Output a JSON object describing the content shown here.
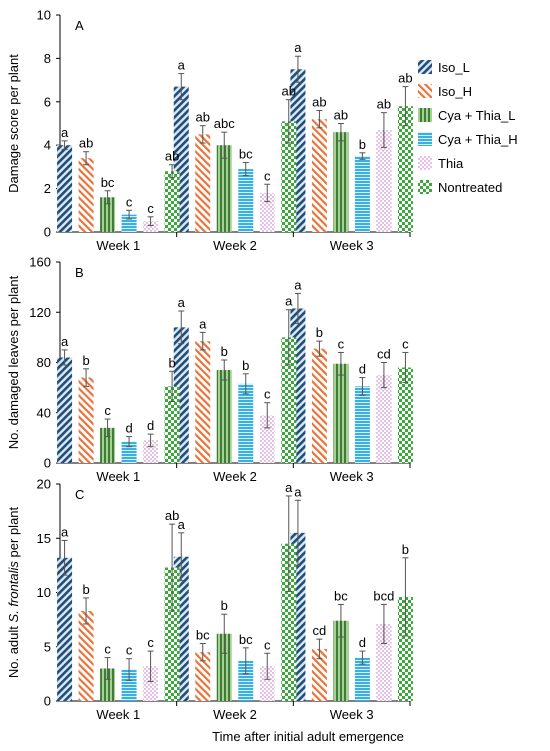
{
  "figure": {
    "xlabel": "Time after initial adult emergence",
    "categories": [
      "Week 1",
      "Week 2",
      "Week 3"
    ]
  },
  "legend": [
    {
      "name": "Iso_L",
      "pattern": "diag-blue"
    },
    {
      "name": "Iso_H",
      "pattern": "diag-orange"
    },
    {
      "name": "Cya + Thia_L",
      "pattern": "vert-green"
    },
    {
      "name": "Cya + Thia_H",
      "pattern": "horiz-blue"
    },
    {
      "name": "Thia",
      "pattern": "dots-pink"
    },
    {
      "name": "Nontreated",
      "pattern": "check-green"
    }
  ],
  "colors": {
    "Iso_L": "#1f4e79",
    "Iso_H": "#e8743b",
    "Cya + Thia_L": "#3b7d3b",
    "Cya + Thia_H": "#3ab0e2",
    "Thia": "#c060c0",
    "Nontreated": "#3aa83a"
  },
  "chart_data": [
    {
      "type": "bar",
      "panel": "A",
      "ylabel": "Damage score per plant",
      "ylim": [
        0,
        10
      ],
      "yticks": [
        0,
        2,
        4,
        6,
        8,
        10
      ],
      "categories": [
        "Week 1",
        "Week 2",
        "Week 3"
      ],
      "series": [
        {
          "name": "Iso_L",
          "values": [
            4.0,
            6.7,
            7.5
          ],
          "errors": [
            0.2,
            0.6,
            0.6
          ],
          "letters": [
            "a",
            "a",
            "a"
          ]
        },
        {
          "name": "Iso_H",
          "values": [
            3.4,
            4.5,
            5.2
          ],
          "errors": [
            0.3,
            0.4,
            0.4
          ],
          "letters": [
            "ab",
            "ab",
            "ab"
          ]
        },
        {
          "name": "Cya + Thia_L",
          "values": [
            1.6,
            4.0,
            4.6
          ],
          "errors": [
            0.3,
            0.6,
            0.4
          ],
          "letters": [
            "bc",
            "abc",
            "ab"
          ]
        },
        {
          "name": "Cya + Thia_H",
          "values": [
            0.8,
            2.9,
            3.5
          ],
          "errors": [
            0.2,
            0.3,
            0.15
          ],
          "letters": [
            "c",
            "bc",
            "b"
          ]
        },
        {
          "name": "Thia",
          "values": [
            0.5,
            1.8,
            4.7
          ],
          "errors": [
            0.2,
            0.4,
            0.8
          ],
          "letters": [
            "c",
            "c",
            "ab"
          ]
        },
        {
          "name": "Nontreated",
          "values": [
            2.8,
            5.1,
            5.8
          ],
          "errors": [
            0.3,
            1.0,
            0.9
          ],
          "letters": [
            "ab",
            "ab",
            "ab"
          ]
        }
      ]
    },
    {
      "type": "bar",
      "panel": "B",
      "ylabel": "No. damaged leaves per plant",
      "ylim": [
        0,
        160
      ],
      "yticks": [
        0,
        40,
        80,
        120,
        160
      ],
      "categories": [
        "Week 1",
        "Week 2",
        "Week 3"
      ],
      "series": [
        {
          "name": "Iso_L",
          "values": [
            84,
            108,
            123
          ],
          "errors": [
            6,
            13,
            12
          ],
          "letters": [
            "a",
            "a",
            "a"
          ]
        },
        {
          "name": "Iso_H",
          "values": [
            68,
            97,
            91
          ],
          "errors": [
            7,
            7,
            6
          ],
          "letters": [
            "b",
            "a",
            "b"
          ]
        },
        {
          "name": "Cya + Thia_L",
          "values": [
            28,
            74,
            79
          ],
          "errors": [
            7,
            8,
            9
          ],
          "letters": [
            "c",
            "b",
            "c"
          ]
        },
        {
          "name": "Cya + Thia_H",
          "values": [
            17,
            63,
            61
          ],
          "errors": [
            4,
            8,
            7
          ],
          "letters": [
            "d",
            "b",
            "d"
          ]
        },
        {
          "name": "Thia",
          "values": [
            18,
            38,
            70
          ],
          "errors": [
            5,
            10,
            10
          ],
          "letters": [
            "d",
            "c",
            "cd"
          ]
        },
        {
          "name": "Nontreated",
          "values": [
            61,
            100,
            76
          ],
          "errors": [
            12,
            22,
            12
          ],
          "letters": [
            "b",
            "a",
            "c"
          ]
        }
      ]
    },
    {
      "type": "bar",
      "panel": "C",
      "ylabel_prefix": "No. adult ",
      "ylabel_italic": "S. frontalis",
      "ylabel_suffix": " per plant",
      "ylim": [
        0,
        20
      ],
      "yticks": [
        0,
        5,
        10,
        15,
        20
      ],
      "categories": [
        "Week 1",
        "Week 2",
        "Week 3"
      ],
      "series": [
        {
          "name": "Iso_L",
          "values": [
            13.2,
            13.3,
            15.5
          ],
          "errors": [
            1.6,
            2.2,
            3.0
          ],
          "letters": [
            "a",
            "a",
            "a"
          ]
        },
        {
          "name": "Iso_H",
          "values": [
            8.3,
            4.5,
            4.8
          ],
          "errors": [
            1.2,
            0.8,
            0.9
          ],
          "letters": [
            "b",
            "bc",
            "cd"
          ]
        },
        {
          "name": "Cya + Thia_L",
          "values": [
            3.0,
            6.2,
            7.4
          ],
          "errors": [
            1.0,
            1.8,
            1.5
          ],
          "letters": [
            "c",
            "b",
            "bc"
          ]
        },
        {
          "name": "Cya + Thia_H",
          "values": [
            2.9,
            3.7,
            4.0
          ],
          "errors": [
            1.0,
            1.2,
            0.6
          ],
          "letters": [
            "c",
            "bc",
            "d"
          ]
        },
        {
          "name": "Thia",
          "values": [
            3.2,
            3.2,
            7.1
          ],
          "errors": [
            1.4,
            1.2,
            1.8
          ],
          "letters": [
            "c",
            "c",
            "bcd"
          ]
        },
        {
          "name": "Nontreated",
          "values": [
            12.3,
            14.5,
            9.6
          ],
          "errors": [
            4.0,
            4.4,
            3.6
          ],
          "letters": [
            "ab",
            "a",
            "b"
          ]
        }
      ]
    }
  ]
}
